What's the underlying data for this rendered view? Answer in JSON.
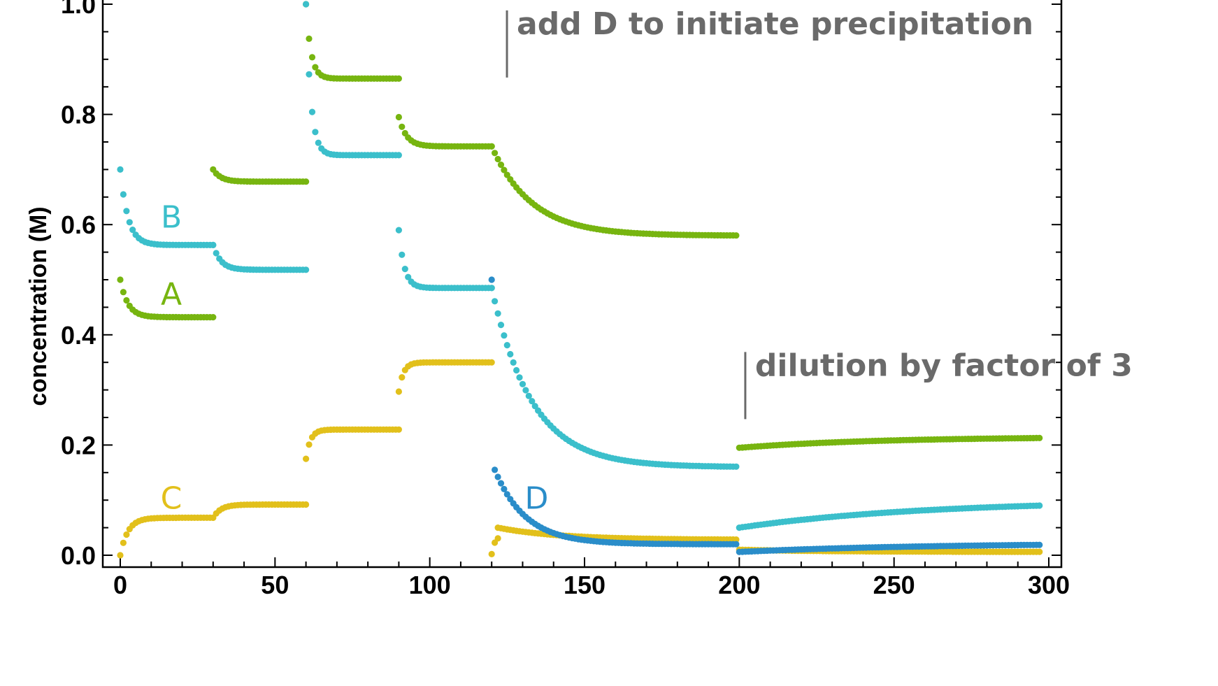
{
  "chart_data": {
    "type": "scatter",
    "title": "",
    "xlabel": "",
    "ylabel": "concentration (M)",
    "xlim": [
      -5,
      300
    ],
    "ylim": [
      0,
      1.0
    ],
    "x_ticks": [
      {
        "value": 0,
        "label": "0"
      },
      {
        "value": 50,
        "label": "50"
      },
      {
        "value": 100,
        "label": "100"
      },
      {
        "value": 150,
        "label": "150"
      },
      {
        "value": 200,
        "label": "200"
      },
      {
        "value": 250,
        "label": "250"
      },
      {
        "value": 300,
        "label": "300"
      }
    ],
    "y_ticks": [
      {
        "value": 0.0,
        "label": "0.0"
      },
      {
        "value": 0.2,
        "label": "0.2"
      },
      {
        "value": 0.4,
        "label": "0.4"
      },
      {
        "value": 0.6,
        "label": "0.6"
      },
      {
        "value": 0.8,
        "label": "0.8"
      },
      {
        "value": 1.0,
        "label": "1.0"
      }
    ],
    "grid": false,
    "series": [
      {
        "name": "A",
        "color": "#77b510",
        "label_x": 16.5,
        "label_y": 0.475,
        "segments": [
          {
            "t0": 0,
            "t1": 30,
            "start": 0.5,
            "end": 0.432,
            "tau": 2.5
          },
          {
            "t0": 30,
            "t1": 60,
            "start": 0.7,
            "end": 0.678,
            "tau": 2.5
          },
          {
            "t0": 60,
            "t1": 90,
            "start": 1.0,
            "end": 0.865,
            "tau": 1.6
          },
          {
            "t0": 90,
            "t1": 120,
            "start": 0.795,
            "end": 0.742,
            "tau": 2.5
          },
          {
            "t0": 120,
            "t1": 199,
            "start": 0.742,
            "end": 0.58,
            "tau": 13
          },
          {
            "t0": 200,
            "t1": 297,
            "start": 0.195,
            "end": 0.215,
            "tau": 45
          }
        ]
      },
      {
        "name": "B",
        "color": "#3bbfcb",
        "label_x": 16.5,
        "label_y": 0.615,
        "segments": [
          {
            "t0": 0,
            "t1": 30,
            "start": 0.7,
            "end": 0.563,
            "tau": 2.5
          },
          {
            "t0": 30,
            "t1": 60,
            "start": 0.563,
            "end": 0.518,
            "tau": 2.5
          },
          {
            "t0": 60,
            "t1": 90,
            "start": 1.0,
            "end": 0.726,
            "tau": 1.6
          },
          {
            "t0": 90,
            "t1": 120,
            "start": 0.59,
            "end": 0.485,
            "tau": 1.8
          },
          {
            "t0": 120,
            "t1": 199,
            "start": 0.485,
            "end": 0.16,
            "tau": 13
          },
          {
            "t0": 200,
            "t1": 297,
            "start": 0.05,
            "end": 0.1,
            "tau": 60
          }
        ]
      },
      {
        "name": "C",
        "color": "#e2c01b",
        "label_x": 16.5,
        "label_y": 0.105,
        "segments": [
          {
            "t0": 0,
            "t1": 30,
            "start": 0.0,
            "end": 0.068,
            "tau": 2.5
          },
          {
            "t0": 30,
            "t1": 60,
            "start": 0.068,
            "end": 0.092,
            "tau": 2.5
          },
          {
            "t0": 60,
            "t1": 90,
            "start": 0.175,
            "end": 0.228,
            "tau": 1.5
          },
          {
            "t0": 90,
            "t1": 120,
            "start": 0.297,
            "end": 0.35,
            "tau": 1.5
          },
          {
            "t0": 120,
            "t1": 122,
            "start": 0.002,
            "end": 0.035,
            "tau": 1
          },
          {
            "t0": 122,
            "t1": 199,
            "start": 0.05,
            "end": 0.028,
            "tau": 20
          },
          {
            "t0": 200,
            "t1": 297,
            "start": 0.01,
            "end": 0.006,
            "tau": 30
          }
        ]
      },
      {
        "name": "D",
        "color": "#2a8dc9",
        "label_x": 134.5,
        "label_y": 0.105,
        "segments": [
          {
            "t0": 120,
            "t1": 120,
            "start": 0.5,
            "end": 0.5,
            "tau": 1
          },
          {
            "t0": 121,
            "t1": 199,
            "start": 0.155,
            "end": 0.02,
            "tau": 10
          },
          {
            "t0": 200,
            "t1": 297,
            "start": 0.006,
            "end": 0.022,
            "tau": 60
          }
        ]
      }
    ],
    "annotations": [
      {
        "text": "add D to initiate precipitation",
        "x": 122,
        "y": 0.985
      },
      {
        "text": "dilution by factor of 3",
        "x": 199,
        "y": 0.365
      }
    ]
  }
}
